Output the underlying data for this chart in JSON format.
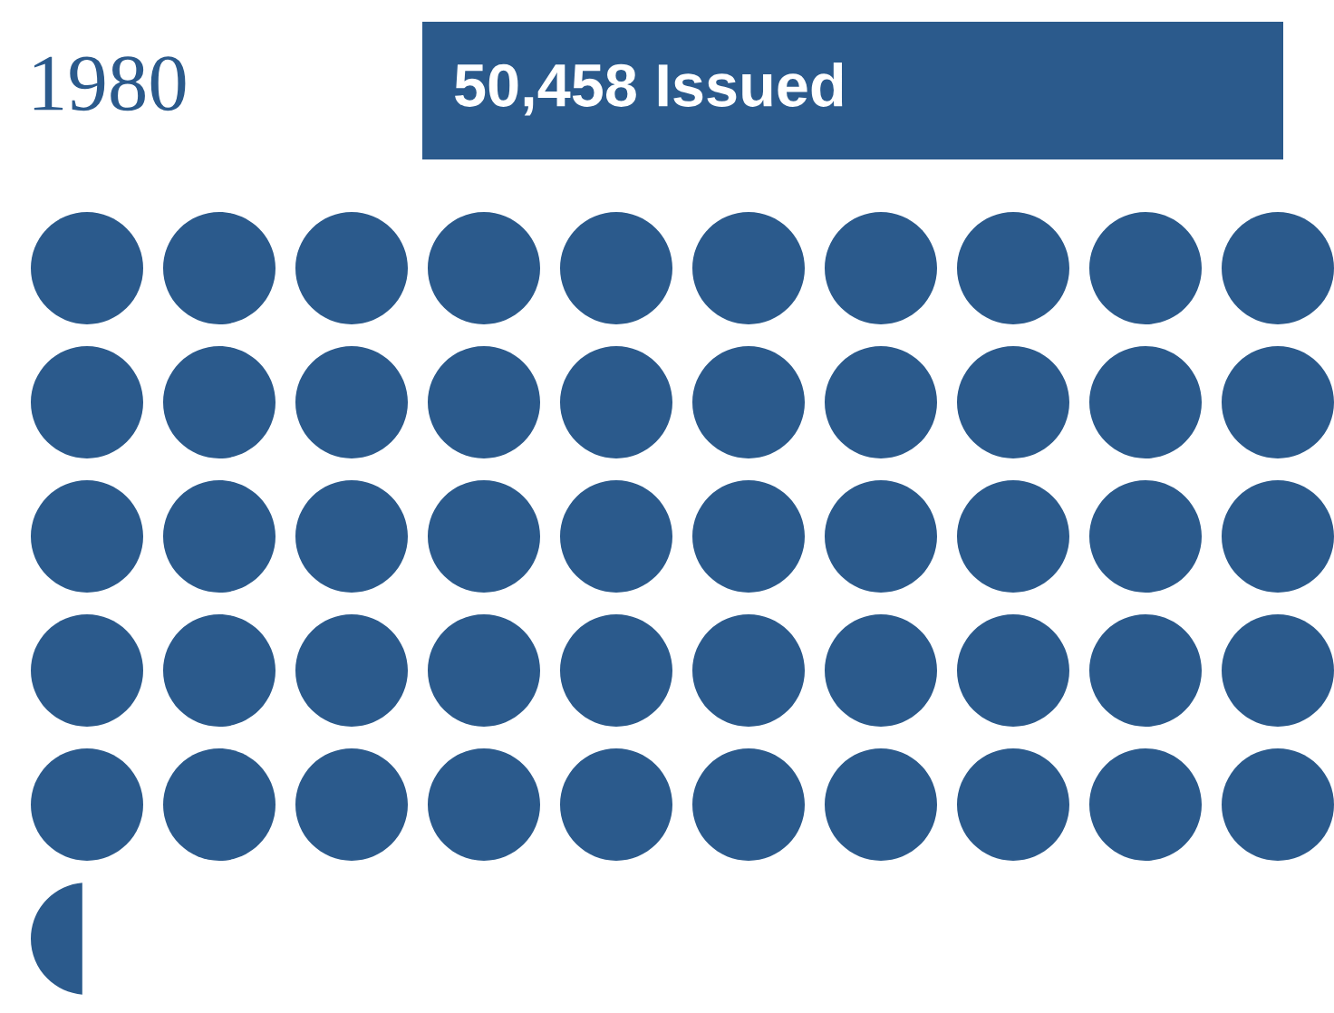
{
  "chart_data": {
    "type": "other",
    "title": "1980",
    "values": [
      50458
    ],
    "value_labels": [
      "50,458 Issued"
    ],
    "color": "#2b5a8c"
  }
}
